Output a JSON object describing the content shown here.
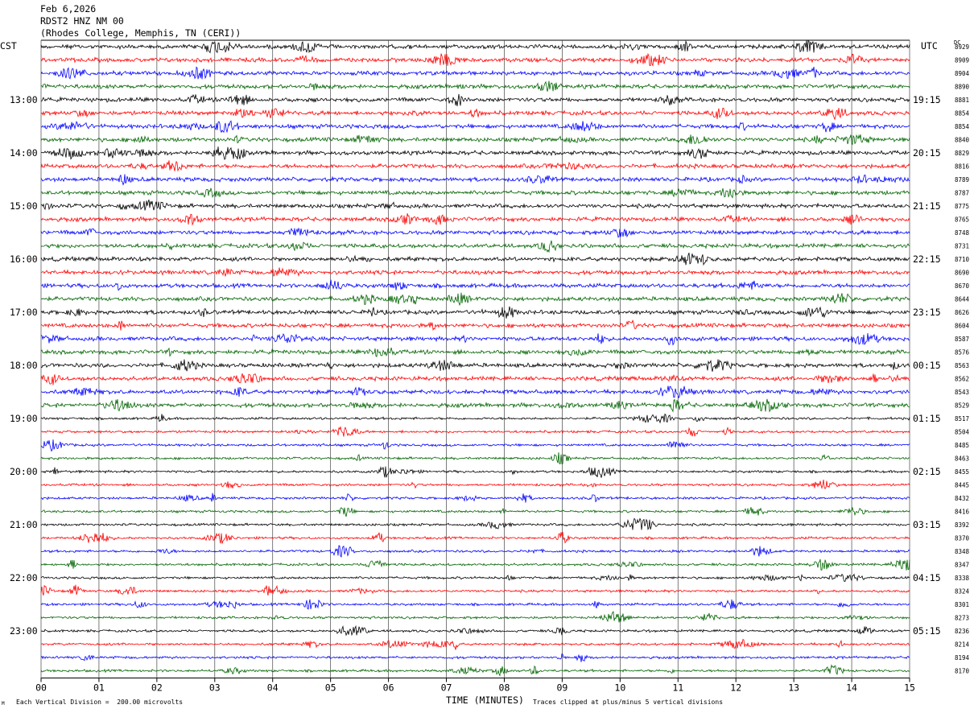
{
  "header": {
    "date": "Feb 6,2026",
    "station": "RDST2 HNZ NM 00",
    "site": "(Rhodes College, Memphis, TN (CERI))"
  },
  "left_timezone": "CST",
  "right_timezone": "UTC",
  "dc_label": "DC",
  "footer": {
    "scale_note": "Each Vertical Division =  200.00 microvolts",
    "clip_note": "Traces clipped at plus/minus 5 vertical divisions",
    "corner_mark": "M"
  },
  "chart_data": {
    "type": "line",
    "title": "",
    "xlabel": "TIME (MINUTES)",
    "ylabel": "",
    "x_ticks": [
      "00",
      "01",
      "02",
      "03",
      "04",
      "05",
      "06",
      "07",
      "08",
      "09",
      "10",
      "11",
      "12",
      "13",
      "14",
      "15"
    ],
    "xlim": [
      0,
      15
    ],
    "grid": "vertical lines at each minute",
    "trace_colors": [
      "#000000",
      "#ff0000",
      "#0000ff",
      "#006400"
    ],
    "left_hour_labels": [
      "13:00",
      "14:00",
      "15:00",
      "16:00",
      "17:00",
      "18:00",
      "19:00",
      "20:00",
      "21:00",
      "22:00",
      "23:00"
    ],
    "right_hour_labels": [
      "19:15",
      "20:15",
      "21:15",
      "22:15",
      "23:15",
      "00:15",
      "01:15",
      "02:15",
      "03:15",
      "04:15",
      "05:15"
    ],
    "dc_offsets": [
      "8929",
      "8909",
      "8904",
      "8890",
      "8881",
      "8854",
      "8854",
      "8840",
      "8829",
      "8816",
      "8789",
      "8787",
      "8775",
      "8765",
      "8748",
      "8731",
      "8710",
      "8690",
      "8670",
      "8644",
      "8626",
      "8604",
      "8587",
      "8576",
      "8563",
      "8562",
      "8543",
      "8529",
      "8517",
      "8504",
      "8485",
      "8463",
      "8455",
      "8445",
      "8432",
      "8416",
      "8392",
      "8370",
      "8348",
      "8347",
      "8338",
      "8324",
      "8301",
      "8273",
      "8236",
      "8214",
      "8194",
      "8170"
    ]
  }
}
